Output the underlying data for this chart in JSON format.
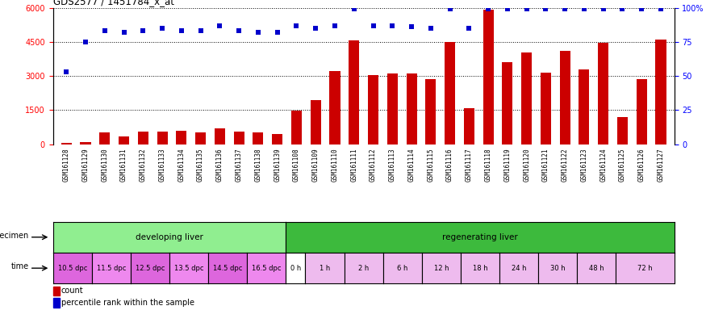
{
  "title": "GDS2577 / 1451784_x_at",
  "samples": [
    "GSM161128",
    "GSM161129",
    "GSM161130",
    "GSM161131",
    "GSM161132",
    "GSM161133",
    "GSM161134",
    "GSM161135",
    "GSM161136",
    "GSM161137",
    "GSM161138",
    "GSM161139",
    "GSM161108",
    "GSM161109",
    "GSM161110",
    "GSM161111",
    "GSM161112",
    "GSM161113",
    "GSM161114",
    "GSM161115",
    "GSM161116",
    "GSM161117",
    "GSM161118",
    "GSM161119",
    "GSM161120",
    "GSM161121",
    "GSM161122",
    "GSM161123",
    "GSM161124",
    "GSM161125",
    "GSM161126",
    "GSM161127"
  ],
  "counts": [
    50,
    100,
    500,
    350,
    550,
    550,
    600,
    500,
    700,
    550,
    500,
    450,
    1480,
    1950,
    3200,
    4550,
    3050,
    3100,
    3100,
    2850,
    4500,
    1600,
    5900,
    3600,
    4050,
    3150,
    4100,
    3300,
    4450,
    1200,
    2850,
    4600
  ],
  "percentile_pct": [
    53,
    75,
    83,
    82,
    83,
    85,
    83,
    83,
    87,
    83,
    82,
    82,
    87,
    85,
    87,
    99,
    87,
    87,
    86,
    85,
    99,
    85,
    99,
    99,
    99,
    99,
    99,
    99,
    99,
    99,
    99,
    99
  ],
  "specimen_groups": [
    {
      "label": "developing liver",
      "color": "#90ee90",
      "start": 0,
      "end": 12
    },
    {
      "label": "regenerating liver",
      "color": "#3dba3d",
      "start": 12,
      "end": 32
    }
  ],
  "time_groups": [
    {
      "label": "10.5 dpc",
      "color": "#dd66dd",
      "start": 0,
      "end": 2
    },
    {
      "label": "11.5 dpc",
      "color": "#ee88ee",
      "start": 2,
      "end": 4
    },
    {
      "label": "12.5 dpc",
      "color": "#dd66dd",
      "start": 4,
      "end": 6
    },
    {
      "label": "13.5 dpc",
      "color": "#ee88ee",
      "start": 6,
      "end": 8
    },
    {
      "label": "14.5 dpc",
      "color": "#dd66dd",
      "start": 8,
      "end": 10
    },
    {
      "label": "16.5 dpc",
      "color": "#ee88ee",
      "start": 10,
      "end": 12
    },
    {
      "label": "0 h",
      "color": "#ffffff",
      "start": 12,
      "end": 13
    },
    {
      "label": "1 h",
      "color": "#eebbee",
      "start": 13,
      "end": 15
    },
    {
      "label": "2 h",
      "color": "#eebbee",
      "start": 15,
      "end": 17
    },
    {
      "label": "6 h",
      "color": "#eebbee",
      "start": 17,
      "end": 19
    },
    {
      "label": "12 h",
      "color": "#eebbee",
      "start": 19,
      "end": 21
    },
    {
      "label": "18 h",
      "color": "#eebbee",
      "start": 21,
      "end": 23
    },
    {
      "label": "24 h",
      "color": "#eebbee",
      "start": 23,
      "end": 25
    },
    {
      "label": "30 h",
      "color": "#eebbee",
      "start": 25,
      "end": 27
    },
    {
      "label": "48 h",
      "color": "#eebbee",
      "start": 27,
      "end": 29
    },
    {
      "label": "72 h",
      "color": "#eebbee",
      "start": 29,
      "end": 32
    }
  ],
  "ylim_left": [
    0,
    6000
  ],
  "ylim_right": [
    0,
    100
  ],
  "yticks_left": [
    0,
    1500,
    3000,
    4500,
    6000
  ],
  "yticks_right": [
    0,
    25,
    50,
    75,
    100
  ],
  "bar_color": "#cc0000",
  "dot_color": "#0000cc",
  "background_color": "#ffffff",
  "specimen_label": "specimen",
  "time_label": "time",
  "legend_count": "count",
  "legend_percentile": "percentile rank within the sample",
  "fig_width": 8.75,
  "fig_height": 3.84,
  "dpi": 100
}
